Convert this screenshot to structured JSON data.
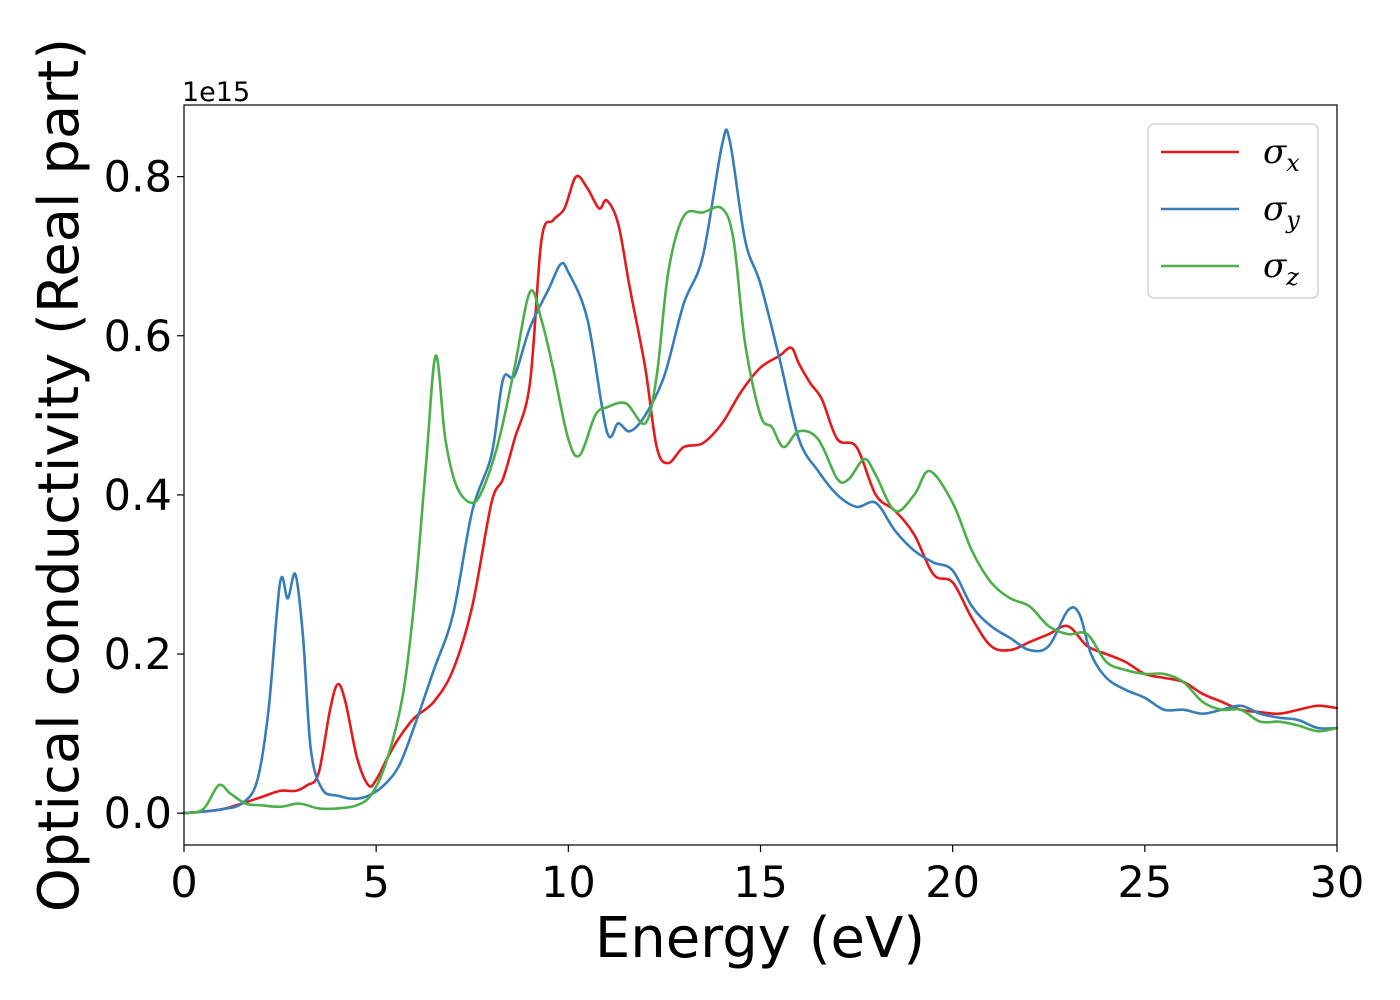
{
  "chart_data": {
    "type": "line",
    "title": "",
    "xlabel": "Energy (eV)",
    "ylabel": "Optical conductivity (Real part)",
    "y_offset_label": "1e15",
    "xlim": [
      0,
      30
    ],
    "ylim": [
      -0.04,
      0.89
    ],
    "xticks": [
      0,
      5,
      10,
      15,
      20,
      25,
      30
    ],
    "xtick_labels": [
      "0",
      "5",
      "10",
      "15",
      "20",
      "25",
      "30"
    ],
    "yticks": [
      0.0,
      0.2,
      0.4,
      0.6,
      0.8
    ],
    "ytick_labels": [
      "0.0",
      "0.2",
      "0.4",
      "0.6",
      "0.8"
    ],
    "grid": false,
    "legend_position": "top-right",
    "series": [
      {
        "name": "σx",
        "symbol": "σ",
        "subscript": "x",
        "color": "#e41a1c",
        "points": [
          [
            0,
            0
          ],
          [
            0.5,
            0.002
          ],
          [
            1,
            0.005
          ],
          [
            1.5,
            0.012
          ],
          [
            2,
            0.02
          ],
          [
            2.5,
            0.028
          ],
          [
            2.9,
            0.028
          ],
          [
            3.2,
            0.035
          ],
          [
            3.5,
            0.05
          ],
          [
            3.8,
            0.13
          ],
          [
            4.0,
            0.162
          ],
          [
            4.2,
            0.14
          ],
          [
            4.5,
            0.07
          ],
          [
            4.8,
            0.035
          ],
          [
            5.0,
            0.042
          ],
          [
            5.3,
            0.07
          ],
          [
            5.6,
            0.095
          ],
          [
            6.0,
            0.12
          ],
          [
            6.5,
            0.14
          ],
          [
            7.0,
            0.18
          ],
          [
            7.5,
            0.26
          ],
          [
            8.0,
            0.39
          ],
          [
            8.3,
            0.42
          ],
          [
            8.6,
            0.47
          ],
          [
            9.0,
            0.54
          ],
          [
            9.3,
            0.72
          ],
          [
            9.6,
            0.745
          ],
          [
            9.9,
            0.76
          ],
          [
            10.2,
            0.8
          ],
          [
            10.5,
            0.785
          ],
          [
            10.8,
            0.76
          ],
          [
            11.0,
            0.77
          ],
          [
            11.3,
            0.74
          ],
          [
            11.6,
            0.66
          ],
          [
            12.0,
            0.56
          ],
          [
            12.3,
            0.46
          ],
          [
            12.6,
            0.44
          ],
          [
            13.0,
            0.46
          ],
          [
            13.5,
            0.465
          ],
          [
            14.0,
            0.49
          ],
          [
            14.5,
            0.53
          ],
          [
            15.0,
            0.56
          ],
          [
            15.5,
            0.575
          ],
          [
            15.8,
            0.585
          ],
          [
            16.0,
            0.565
          ],
          [
            16.3,
            0.54
          ],
          [
            16.6,
            0.52
          ],
          [
            17.0,
            0.47
          ],
          [
            17.5,
            0.46
          ],
          [
            18.0,
            0.4
          ],
          [
            18.5,
            0.38
          ],
          [
            19.0,
            0.35
          ],
          [
            19.5,
            0.3
          ],
          [
            20.0,
            0.29
          ],
          [
            20.5,
            0.245
          ],
          [
            21.0,
            0.21
          ],
          [
            21.5,
            0.205
          ],
          [
            22.0,
            0.215
          ],
          [
            22.5,
            0.225
          ],
          [
            23.0,
            0.235
          ],
          [
            23.5,
            0.21
          ],
          [
            24.0,
            0.2
          ],
          [
            24.5,
            0.19
          ],
          [
            25.0,
            0.175
          ],
          [
            25.5,
            0.17
          ],
          [
            26.0,
            0.165
          ],
          [
            26.5,
            0.15
          ],
          [
            27.0,
            0.14
          ],
          [
            27.5,
            0.13
          ],
          [
            28.0,
            0.127
          ],
          [
            28.5,
            0.125
          ],
          [
            29.0,
            0.13
          ],
          [
            29.5,
            0.135
          ],
          [
            30.0,
            0.132
          ]
        ]
      },
      {
        "name": "σy",
        "symbol": "σ",
        "subscript": "y",
        "color": "#377eb8",
        "points": [
          [
            0,
            0
          ],
          [
            0.5,
            0.002
          ],
          [
            1,
            0.005
          ],
          [
            1.5,
            0.012
          ],
          [
            1.9,
            0.04
          ],
          [
            2.2,
            0.13
          ],
          [
            2.5,
            0.29
          ],
          [
            2.7,
            0.27
          ],
          [
            2.9,
            0.3
          ],
          [
            3.1,
            0.22
          ],
          [
            3.3,
            0.08
          ],
          [
            3.6,
            0.03
          ],
          [
            4.0,
            0.022
          ],
          [
            4.4,
            0.018
          ],
          [
            4.8,
            0.022
          ],
          [
            5.2,
            0.035
          ],
          [
            5.6,
            0.06
          ],
          [
            6.0,
            0.11
          ],
          [
            6.5,
            0.18
          ],
          [
            7.0,
            0.25
          ],
          [
            7.5,
            0.38
          ],
          [
            8.0,
            0.45
          ],
          [
            8.3,
            0.545
          ],
          [
            8.6,
            0.55
          ],
          [
            9.0,
            0.61
          ],
          [
            9.5,
            0.66
          ],
          [
            9.8,
            0.69
          ],
          [
            10.0,
            0.68
          ],
          [
            10.5,
            0.62
          ],
          [
            11.0,
            0.48
          ],
          [
            11.3,
            0.49
          ],
          [
            11.6,
            0.48
          ],
          [
            12.0,
            0.5
          ],
          [
            12.5,
            0.55
          ],
          [
            13.0,
            0.64
          ],
          [
            13.5,
            0.7
          ],
          [
            14.0,
            0.84
          ],
          [
            14.2,
            0.845
          ],
          [
            14.6,
            0.72
          ],
          [
            15.0,
            0.665
          ],
          [
            15.5,
            0.57
          ],
          [
            16.0,
            0.47
          ],
          [
            16.5,
            0.43
          ],
          [
            17.0,
            0.4
          ],
          [
            17.5,
            0.385
          ],
          [
            18.0,
            0.39
          ],
          [
            18.5,
            0.355
          ],
          [
            19.0,
            0.33
          ],
          [
            19.5,
            0.315
          ],
          [
            20.0,
            0.305
          ],
          [
            20.5,
            0.26
          ],
          [
            21.0,
            0.235
          ],
          [
            21.5,
            0.22
          ],
          [
            22.0,
            0.205
          ],
          [
            22.5,
            0.21
          ],
          [
            23.0,
            0.255
          ],
          [
            23.3,
            0.25
          ],
          [
            23.6,
            0.2
          ],
          [
            24.0,
            0.17
          ],
          [
            24.5,
            0.155
          ],
          [
            25.0,
            0.145
          ],
          [
            25.5,
            0.13
          ],
          [
            26.0,
            0.13
          ],
          [
            26.5,
            0.125
          ],
          [
            27.0,
            0.13
          ],
          [
            27.5,
            0.135
          ],
          [
            28.0,
            0.125
          ],
          [
            28.5,
            0.12
          ],
          [
            29.0,
            0.117
          ],
          [
            29.5,
            0.107
          ],
          [
            30.0,
            0.107
          ]
        ]
      },
      {
        "name": "σz",
        "symbol": "σ",
        "subscript": "z",
        "color": "#4daf4a",
        "points": [
          [
            0,
            0
          ],
          [
            0.5,
            0.005
          ],
          [
            0.9,
            0.035
          ],
          [
            1.2,
            0.025
          ],
          [
            1.6,
            0.012
          ],
          [
            2.0,
            0.01
          ],
          [
            2.5,
            0.008
          ],
          [
            3.0,
            0.012
          ],
          [
            3.5,
            0.006
          ],
          [
            4.0,
            0.006
          ],
          [
            4.5,
            0.01
          ],
          [
            4.9,
            0.025
          ],
          [
            5.3,
            0.07
          ],
          [
            5.7,
            0.15
          ],
          [
            6.0,
            0.27
          ],
          [
            6.3,
            0.44
          ],
          [
            6.55,
            0.575
          ],
          [
            6.8,
            0.47
          ],
          [
            7.1,
            0.41
          ],
          [
            7.5,
            0.39
          ],
          [
            7.8,
            0.41
          ],
          [
            8.2,
            0.47
          ],
          [
            8.6,
            0.56
          ],
          [
            9.0,
            0.655
          ],
          [
            9.3,
            0.62
          ],
          [
            9.6,
            0.56
          ],
          [
            10.0,
            0.47
          ],
          [
            10.3,
            0.45
          ],
          [
            10.7,
            0.5
          ],
          [
            11.0,
            0.51
          ],
          [
            11.5,
            0.515
          ],
          [
            12.0,
            0.49
          ],
          [
            12.3,
            0.55
          ],
          [
            12.6,
            0.68
          ],
          [
            13.0,
            0.75
          ],
          [
            13.5,
            0.755
          ],
          [
            14.0,
            0.76
          ],
          [
            14.3,
            0.72
          ],
          [
            14.6,
            0.59
          ],
          [
            15.0,
            0.5
          ],
          [
            15.3,
            0.485
          ],
          [
            15.6,
            0.46
          ],
          [
            16.0,
            0.48
          ],
          [
            16.5,
            0.47
          ],
          [
            17.0,
            0.42
          ],
          [
            17.3,
            0.42
          ],
          [
            17.7,
            0.445
          ],
          [
            18.0,
            0.425
          ],
          [
            18.5,
            0.38
          ],
          [
            19.0,
            0.4
          ],
          [
            19.4,
            0.43
          ],
          [
            20.0,
            0.39
          ],
          [
            20.5,
            0.33
          ],
          [
            21.0,
            0.29
          ],
          [
            21.5,
            0.27
          ],
          [
            22.0,
            0.26
          ],
          [
            22.5,
            0.235
          ],
          [
            23.0,
            0.225
          ],
          [
            23.5,
            0.225
          ],
          [
            24.0,
            0.19
          ],
          [
            24.5,
            0.18
          ],
          [
            25.0,
            0.175
          ],
          [
            25.5,
            0.175
          ],
          [
            26.0,
            0.165
          ],
          [
            26.5,
            0.14
          ],
          [
            27.0,
            0.13
          ],
          [
            27.5,
            0.13
          ],
          [
            28.0,
            0.115
          ],
          [
            28.5,
            0.115
          ],
          [
            29.0,
            0.11
          ],
          [
            29.5,
            0.103
          ],
          [
            30.0,
            0.107
          ]
        ]
      }
    ]
  }
}
